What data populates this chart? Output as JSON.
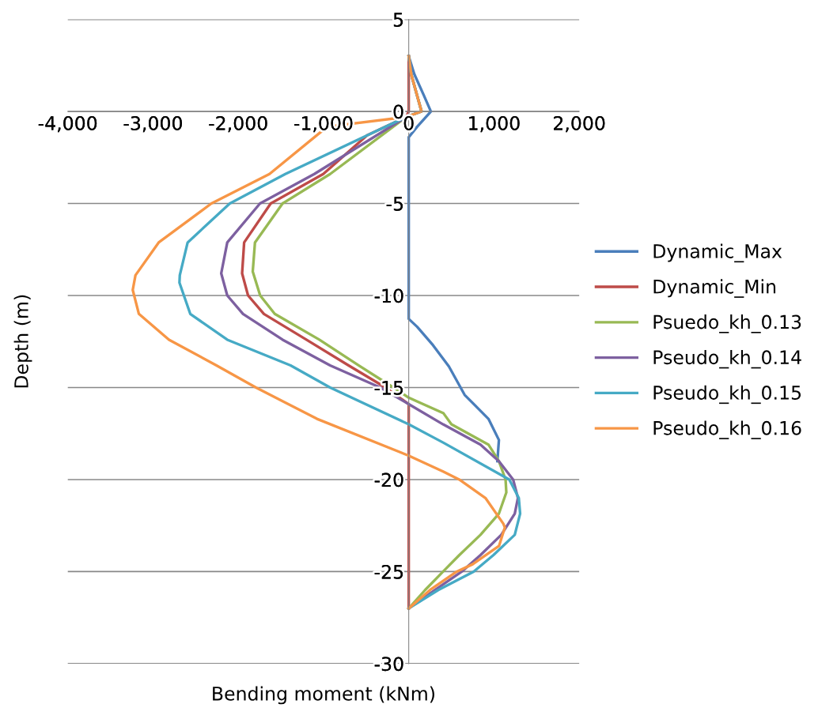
{
  "chart_data": {
    "type": "line",
    "xlabel": "Bending moment (kNm)",
    "ylabel": "Depth (m)",
    "xlim": [
      -4000,
      2000
    ],
    "xticks": [
      {
        "value": -4000,
        "label": "-4,000"
      },
      {
        "value": -3000,
        "label": "-3,000"
      },
      {
        "value": -2000,
        "label": "-2,000"
      },
      {
        "value": -1000,
        "label": "-1,000"
      },
      0,
      {
        "value": 1000,
        "label": "1,000"
      },
      {
        "value": 2000,
        "label": "2,000"
      }
    ],
    "ylim": [
      -30,
      5
    ],
    "yticks": [
      -30,
      -25,
      -20,
      -15,
      -10,
      -5,
      0,
      5
    ],
    "grid": "y",
    "legend": "right",
    "marker": "none",
    "line_style": "solid",
    "series": [
      {
        "name": "Dynamic_Max",
        "color": "#4a7ebb",
        "x": [
          0,
          65,
          176,
          260,
          99,
          0,
          0,
          99,
          285,
          471,
          656,
          935,
          1058,
          1040
        ],
        "values": [
          3,
          2.03,
          0.89,
          0,
          -0.83,
          -1.4,
          -11.27,
          -11.7,
          -12.7,
          -13.85,
          -15.4,
          -16.7,
          -17.85,
          -19.0
        ]
      },
      {
        "name": "Dynamic_Min",
        "color": "#be4b48",
        "x": [
          0,
          0,
          -30,
          -488,
          -1003,
          -1619,
          -1931,
          -1955,
          -1885,
          -1699,
          -1201,
          -706,
          -272,
          0,
          0
        ],
        "values": [
          3,
          0,
          -0.3,
          -1.3,
          -3.4,
          -5,
          -7.12,
          -8.8,
          -10,
          -11,
          -12.4,
          -13.8,
          -15,
          -15.9,
          -27
        ]
      },
      {
        "name": "Psuedo_kh_0.13",
        "color": "#98b954",
        "x": [
          0,
          30,
          150,
          -30,
          -922,
          -1480,
          -1804,
          -1830,
          -1743,
          -1572,
          -1049,
          -585,
          -179,
          0,
          408,
          501,
          935,
          1058,
          1136,
          1145,
          1058,
          842,
          594,
          403,
          192,
          0
        ],
        "values": [
          3,
          2,
          0,
          -0.3,
          -3.4,
          -5,
          -7.12,
          -8.7,
          -10,
          -11,
          -12.4,
          -13.8,
          -15,
          -15.55,
          -16.4,
          -17.0,
          -18.1,
          -19.0,
          -20,
          -20.7,
          -21.85,
          -23,
          -24.1,
          -25,
          -26,
          -27
        ]
      },
      {
        "name": "Pseudo_kh_0.14",
        "color": "#7d60a0",
        "x": [
          0,
          30,
          150,
          -30,
          -1108,
          -1745,
          -2129,
          -2200,
          -2129,
          -1944,
          -1480,
          -922,
          -334,
          0,
          403,
          842,
          1058,
          1225,
          1281,
          1244,
          1086,
          842,
          622,
          309,
          0
        ],
        "values": [
          3,
          2,
          0,
          -0.3,
          -3.4,
          -5,
          -7.12,
          -8.8,
          -10,
          -11,
          -12.4,
          -13.8,
          -15,
          -15.9,
          -17.0,
          -18.1,
          -19.0,
          -20,
          -21,
          -21.85,
          -23,
          -24.1,
          -25,
          -26,
          -27
        ]
      },
      {
        "name": "Pseudo_kh_0.15",
        "color": "#46aac5",
        "x": [
          0,
          30,
          150,
          -30,
          -1448,
          -2099,
          -2594,
          -2686,
          -2690,
          -2563,
          -2129,
          -1386,
          -922,
          0,
          408,
          1180,
          1291,
          1307,
          1244,
          994,
          762,
          346,
          0
        ],
        "values": [
          3,
          2,
          0,
          -0.3,
          -3.4,
          -5,
          -7.12,
          -8.9,
          -9.3,
          -11,
          -12.4,
          -13.8,
          -15,
          -17.0,
          -18.0,
          -20,
          -21,
          -21.85,
          -23,
          -24.1,
          -25,
          -26,
          -27
        ]
      },
      {
        "name": "Pseudo_kh_0.16",
        "color": "#f79646",
        "x": [
          0,
          30,
          150,
          -30,
          -956,
          -1634,
          -2315,
          -2934,
          -3206,
          -3238,
          -3166,
          -2813,
          -2256,
          -1792,
          -1077,
          0,
          408,
          593,
          900,
          1110,
          1128,
          1060,
          750,
          563,
          250,
          0
        ],
        "values": [
          3,
          2,
          0,
          -0.3,
          -0.83,
          -3.4,
          -5,
          -7.12,
          -8.9,
          -9.7,
          -11,
          -12.4,
          -13.8,
          -15,
          -16.7,
          -18.7,
          -19.57,
          -20,
          -21,
          -22.4,
          -22.6,
          -23.6,
          -24.6,
          -25,
          -26,
          -27
        ]
      }
    ]
  }
}
